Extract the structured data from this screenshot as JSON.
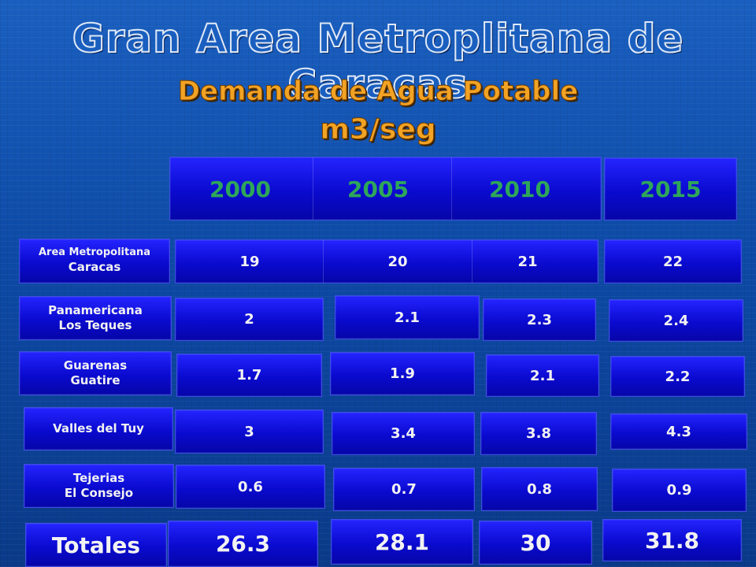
{
  "title": "Gran Area Metroplitana de Caracas",
  "subtitle": "Demanda de Agua Potable",
  "unit": "m3/seg",
  "years": [
    "2000",
    "2005",
    "2010",
    "2015"
  ],
  "rows": [
    {
      "label1": "Area Metropolitana",
      "label2": "Caracas",
      "values": [
        "19",
        "20",
        "21",
        "22"
      ]
    },
    {
      "label1": "Panamericana",
      "label2": "Los Teques",
      "values": [
        "2",
        "2.1",
        "2.3",
        "2.4"
      ]
    },
    {
      "label1": "Guarenas",
      "label2": "Guatire",
      "values": [
        "1.7",
        "1.9",
        "2.1",
        "2.2"
      ]
    },
    {
      "label1": "Valles del Tuy",
      "label2": "",
      "values": [
        "3",
        "3.4",
        "3.8",
        "4.3"
      ]
    },
    {
      "label1": "Tejerias",
      "label2": "El Consejo",
      "values": [
        "0.6",
        "0.7",
        "0.8",
        "0.9"
      ]
    }
  ],
  "totals": {
    "label": "Totales",
    "values": [
      "26.3",
      "28.1",
      "30",
      "31.8"
    ]
  }
}
